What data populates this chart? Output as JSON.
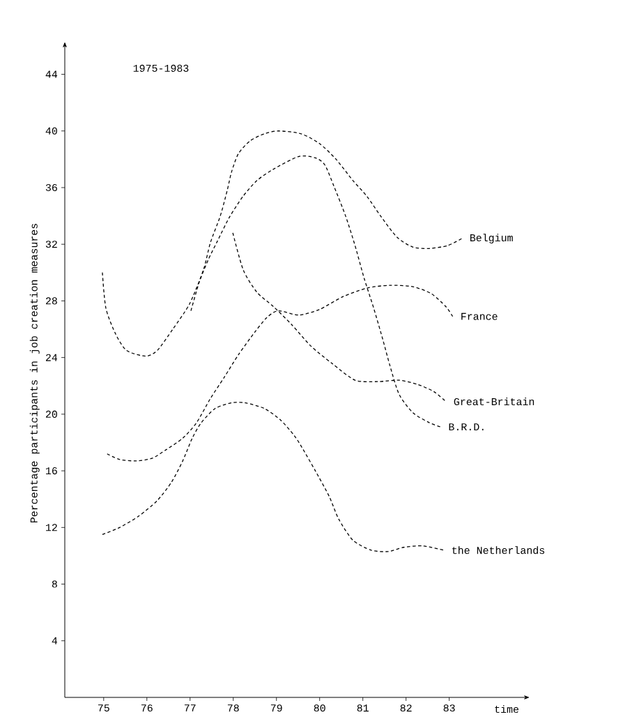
{
  "chart_data": {
    "type": "line",
    "title": "1975-1983",
    "xlabel": "time",
    "ylabel": "Percentage participants in job creation measures",
    "xlim": [
      74.1,
      84.7
    ],
    "ylim": [
      0,
      45.8
    ],
    "xticks": [
      75,
      76,
      77,
      78,
      79,
      80,
      81,
      82,
      83
    ],
    "yticks": [
      4,
      8,
      12,
      16,
      20,
      24,
      28,
      32,
      36,
      40,
      44
    ],
    "line_style": "dashed",
    "legend": false,
    "grid": false,
    "series": [
      {
        "name": "Belgium",
        "color": "#000000",
        "x": [
          74.97,
          75.05,
          75.27,
          75.53,
          75.97,
          76.24,
          76.6,
          76.99,
          77.31,
          77.47,
          77.7,
          77.86,
          77.96,
          78.12,
          78.39,
          78.72,
          79.05,
          79.57,
          80.0,
          80.38,
          80.77,
          81.09,
          81.41,
          81.79,
          82.16,
          82.54,
          82.96,
          83.29
        ],
        "values": [
          30.0,
          27.5,
          25.7,
          24.5,
          24.1,
          24.5,
          26.0,
          27.8,
          30.2,
          32.1,
          34.0,
          35.8,
          37.1,
          38.4,
          39.3,
          39.8,
          40.0,
          39.8,
          39.1,
          38.0,
          36.5,
          35.4,
          34.0,
          32.5,
          31.8,
          31.7,
          31.9,
          32.4
        ]
      },
      {
        "name": "France",
        "color": "#000000",
        "x": [
          75.08,
          75.37,
          75.76,
          76.13,
          76.45,
          76.83,
          77.15,
          77.47,
          77.79,
          78.12,
          78.5,
          78.77,
          79.04,
          79.52,
          80.0,
          80.54,
          81.09,
          81.62,
          82.16,
          82.59,
          82.92,
          83.08
        ],
        "values": [
          17.2,
          16.8,
          16.7,
          16.9,
          17.5,
          18.3,
          19.4,
          21.1,
          22.6,
          24.2,
          25.8,
          26.8,
          27.3,
          27.0,
          27.4,
          28.3,
          28.9,
          29.1,
          29.0,
          28.5,
          27.6,
          26.9
        ]
      },
      {
        "name": "Great-Britain",
        "color": "#000000",
        "x": [
          77.99,
          78.23,
          78.55,
          78.93,
          79.36,
          79.8,
          80.28,
          80.82,
          81.35,
          81.84,
          82.27,
          82.64,
          82.92
        ],
        "values": [
          32.8,
          30.2,
          28.6,
          27.6,
          26.3,
          24.8,
          23.6,
          22.4,
          22.3,
          22.4,
          22.1,
          21.6,
          20.9
        ]
      },
      {
        "name": "B.R.D.",
        "color": "#000000",
        "x": [
          77.02,
          77.21,
          77.42,
          77.63,
          77.91,
          78.23,
          78.55,
          78.93,
          79.52,
          79.9,
          80.12,
          80.33,
          80.6,
          80.82,
          81.03,
          81.25,
          81.46,
          81.63,
          81.84,
          82.16,
          82.54,
          82.8
        ],
        "values": [
          27.3,
          29.3,
          30.9,
          32.2,
          33.9,
          35.4,
          36.5,
          37.3,
          38.2,
          38.1,
          37.6,
          36.1,
          34.0,
          31.9,
          29.6,
          27.5,
          25.3,
          23.4,
          21.4,
          20.1,
          19.4,
          19.1
        ]
      },
      {
        "name": "the Netherlands",
        "color": "#000000",
        "x": [
          74.97,
          75.37,
          75.81,
          76.24,
          76.57,
          76.83,
          77.05,
          77.26,
          77.58,
          77.96,
          78.28,
          78.72,
          79.09,
          79.41,
          79.6,
          79.9,
          80.22,
          80.44,
          80.77,
          81.19,
          81.58,
          81.95,
          82.38,
          82.87
        ],
        "values": [
          11.5,
          12.0,
          12.8,
          13.9,
          15.2,
          16.7,
          18.3,
          19.4,
          20.4,
          20.8,
          20.8,
          20.4,
          19.6,
          18.5,
          17.6,
          16.0,
          14.2,
          12.6,
          11.1,
          10.4,
          10.3,
          10.6,
          10.7,
          10.4
        ]
      }
    ]
  }
}
